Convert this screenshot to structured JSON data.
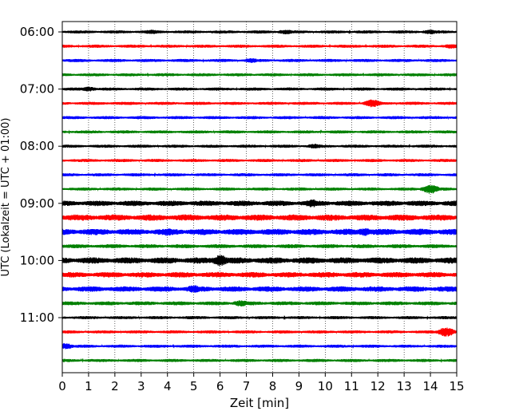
{
  "chart_data": {
    "type": "line",
    "title": "",
    "xlabel": "Zeit  [min]",
    "ylabel": "UTC (Lokalzeit = UTC + 01:00)",
    "xlim": [
      0,
      15
    ],
    "xticks": [
      0,
      1,
      2,
      3,
      4,
      5,
      6,
      7,
      8,
      9,
      10,
      11,
      12,
      13,
      14,
      15
    ],
    "x_grid": true,
    "grid_style": "dotted",
    "start_time": "06:00",
    "row_interval_min": 15,
    "row_colors": [
      "#000000",
      "#ff0000",
      "#0000ff",
      "#008000"
    ],
    "ytick_labels": [
      "06:00",
      "07:00",
      "08:00",
      "09:00",
      "10:00",
      "11:00"
    ],
    "rows": [
      {
        "time": "06:00",
        "color": "#000000",
        "amplitude": 2,
        "events": [
          {
            "x": 3.4,
            "amp": 3
          },
          {
            "x": 8.5,
            "amp": 3
          },
          {
            "x": 14.0,
            "amp": 3
          }
        ]
      },
      {
        "time": "06:15",
        "color": "#ff0000",
        "amplitude": 2,
        "events": [
          {
            "x": 14.8,
            "amp": 3
          }
        ]
      },
      {
        "time": "06:30",
        "color": "#0000ff",
        "amplitude": 2,
        "events": [
          {
            "x": 7.2,
            "amp": 3
          }
        ]
      },
      {
        "time": "06:45",
        "color": "#008000",
        "amplitude": 2,
        "events": []
      },
      {
        "time": "07:00",
        "color": "#000000",
        "amplitude": 2,
        "events": [
          {
            "x": 1.0,
            "amp": 3
          }
        ]
      },
      {
        "time": "07:15",
        "color": "#ff0000",
        "amplitude": 2,
        "events": [
          {
            "x": 11.8,
            "amp": 5
          }
        ]
      },
      {
        "time": "07:30",
        "color": "#0000ff",
        "amplitude": 2,
        "events": []
      },
      {
        "time": "07:45",
        "color": "#008000",
        "amplitude": 2,
        "events": []
      },
      {
        "time": "08:00",
        "color": "#000000",
        "amplitude": 2,
        "events": [
          {
            "x": 9.6,
            "amp": 3
          }
        ]
      },
      {
        "time": "08:15",
        "color": "#ff0000",
        "amplitude": 2,
        "events": []
      },
      {
        "time": "08:30",
        "color": "#0000ff",
        "amplitude": 2,
        "events": []
      },
      {
        "time": "08:45",
        "color": "#008000",
        "amplitude": 2,
        "events": [
          {
            "x": 14.0,
            "amp": 6
          }
        ]
      },
      {
        "time": "09:00",
        "color": "#000000",
        "amplitude": 3.5,
        "events": [
          {
            "x": 9.5,
            "amp": 5
          }
        ]
      },
      {
        "time": "09:15",
        "color": "#ff0000",
        "amplitude": 4,
        "events": []
      },
      {
        "time": "09:30",
        "color": "#0000ff",
        "amplitude": 4,
        "events": [
          {
            "x": 4.0,
            "amp": 5
          },
          {
            "x": 11.5,
            "amp": 5
          }
        ]
      },
      {
        "time": "09:45",
        "color": "#008000",
        "amplitude": 2.5,
        "events": []
      },
      {
        "time": "10:00",
        "color": "#000000",
        "amplitude": 4,
        "events": [
          {
            "x": 6.0,
            "amp": 7
          }
        ]
      },
      {
        "time": "10:15",
        "color": "#ff0000",
        "amplitude": 3.5,
        "events": []
      },
      {
        "time": "10:30",
        "color": "#0000ff",
        "amplitude": 3.5,
        "events": [
          {
            "x": 5.0,
            "amp": 5
          }
        ]
      },
      {
        "time": "10:45",
        "color": "#008000",
        "amplitude": 2.5,
        "events": [
          {
            "x": 6.8,
            "amp": 4
          }
        ]
      },
      {
        "time": "11:00",
        "color": "#000000",
        "amplitude": 2,
        "events": []
      },
      {
        "time": "11:15",
        "color": "#ff0000",
        "amplitude": 2,
        "events": [
          {
            "x": 14.6,
            "amp": 6
          }
        ]
      },
      {
        "time": "11:30",
        "color": "#0000ff",
        "amplitude": 2,
        "events": [
          {
            "x": 0.1,
            "amp": 4
          }
        ]
      },
      {
        "time": "11:45",
        "color": "#008000",
        "amplitude": 2,
        "events": []
      }
    ]
  }
}
